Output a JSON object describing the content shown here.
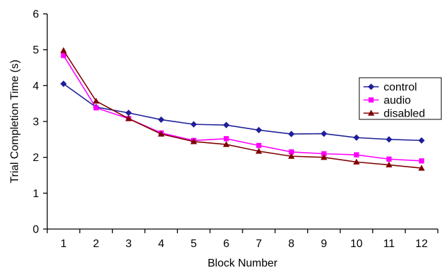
{
  "chart_data": {
    "type": "line",
    "xlabel": "Block Number",
    "ylabel": "Trial Completion Time (s)",
    "ylim": [
      0,
      6
    ],
    "yticks": [
      0,
      1,
      2,
      3,
      4,
      5,
      6
    ],
    "categories": [
      "1",
      "2",
      "3",
      "4",
      "5",
      "6",
      "7",
      "8",
      "9",
      "10",
      "11",
      "12"
    ],
    "grid": false,
    "legend_position": "right",
    "series": [
      {
        "name": "control",
        "color": "#1f1f9a",
        "marker": "diamond",
        "values": [
          4.05,
          3.4,
          3.24,
          3.05,
          2.92,
          2.9,
          2.76,
          2.65,
          2.66,
          2.55,
          2.5,
          2.47
        ]
      },
      {
        "name": "audio",
        "color": "#ff00ff",
        "marker": "square",
        "values": [
          4.84,
          3.38,
          3.08,
          2.68,
          2.47,
          2.52,
          2.33,
          2.15,
          2.1,
          2.07,
          1.95,
          1.9
        ]
      },
      {
        "name": "disabled",
        "color": "#800000",
        "marker": "triangle",
        "values": [
          4.98,
          3.57,
          3.08,
          2.65,
          2.44,
          2.36,
          2.17,
          2.03,
          2.0,
          1.87,
          1.79,
          1.7
        ]
      }
    ]
  }
}
